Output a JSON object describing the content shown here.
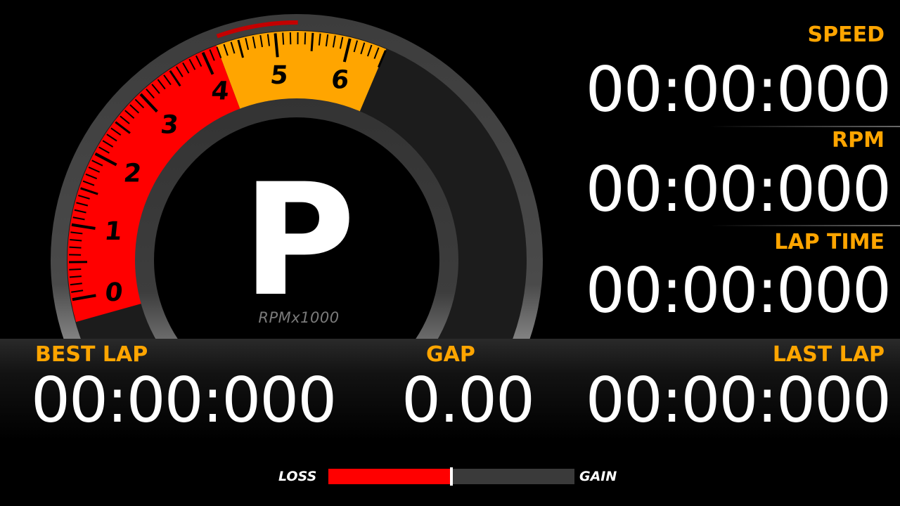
{
  "dashboard": {
    "gear": "P",
    "rpm_unit": "RPMx1000",
    "rpm_scale": [
      "0",
      "1",
      "2",
      "3",
      "4",
      "5",
      "6"
    ],
    "rpm_max": 6.5,
    "rpm_redline": 4.2,
    "speed": {
      "label": "SPEED",
      "value": "00:00:000"
    },
    "rpm": {
      "label": "RPM",
      "value": "00:00:000"
    },
    "lap_time": {
      "label": "LAP TIME",
      "value": "00:00:000"
    },
    "best_lap": {
      "label": "BEST LAP",
      "value": "00:00:000"
    },
    "gap": {
      "label": "GAP",
      "value": "0.00"
    },
    "last_lap": {
      "label": "LAST LAP",
      "value": "00:00:000"
    },
    "gap_bar": {
      "loss_label": "LOSS",
      "gain_label": "GAIN",
      "loss_fraction": 0.5
    }
  },
  "colors": {
    "accent": "#FFA500",
    "rpm_band": "#FF0000",
    "redline_band": "#FFA500",
    "gap_loss": "#FF0000",
    "gap_track": "#3a3a3a"
  }
}
